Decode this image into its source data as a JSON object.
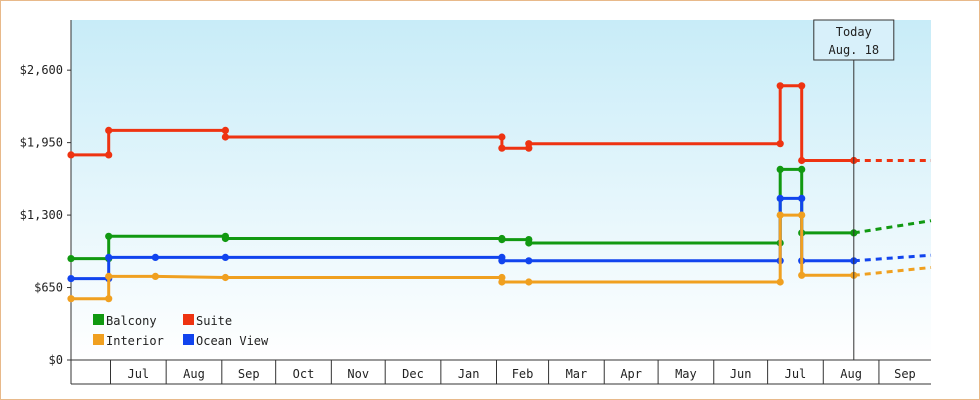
{
  "chart_data": {
    "type": "line",
    "step": true,
    "y_tick_labels": [
      "$0",
      "$650",
      "$1,300",
      "$1,950",
      "$2,600"
    ],
    "y_ticks": [
      0,
      650,
      1300,
      1950,
      2600
    ],
    "ylim": [
      0,
      3050
    ],
    "x_range": [
      "2023-06-09",
      "2024-09-30"
    ],
    "x_tick_labels": [
      "Jul",
      "Aug",
      "Sep",
      "Oct",
      "Nov",
      "Dec",
      "Jan",
      "Feb",
      "Mar",
      "Apr",
      "May",
      "Jun",
      "Jul",
      "Aug",
      "Sep"
    ],
    "month_starts": [
      "2023-07-01",
      "2023-08-01",
      "2023-09-01",
      "2023-10-01",
      "2023-11-01",
      "2023-12-01",
      "2024-01-01",
      "2024-02-01",
      "2024-03-01",
      "2024-04-01",
      "2024-05-01",
      "2024-06-01",
      "2024-07-01",
      "2024-08-01",
      "2024-09-01"
    ],
    "today": {
      "line1": "Today",
      "line2": "Aug. 18",
      "date": "2024-08-18"
    },
    "grid": false,
    "legend_position": "bottom-left",
    "series": [
      {
        "name": "Suite",
        "color": "#ee3311",
        "points": [
          [
            "2023-06-09",
            1840
          ],
          [
            "2023-06-30",
            1840
          ],
          [
            "2023-06-30",
            2060
          ],
          [
            "2023-09-03",
            2060
          ],
          [
            "2023-09-03",
            2000
          ],
          [
            "2024-02-04",
            2000
          ],
          [
            "2024-02-04",
            1900
          ],
          [
            "2024-02-19",
            1900
          ],
          [
            "2024-02-19",
            1940
          ],
          [
            "2024-07-08",
            1940
          ],
          [
            "2024-07-08",
            2460
          ],
          [
            "2024-07-20",
            2460
          ],
          [
            "2024-07-20",
            1790
          ],
          [
            "2024-08-18",
            1790
          ]
        ],
        "forecast": [
          [
            "2024-08-18",
            1790
          ],
          [
            "2024-09-30",
            1790
          ]
        ]
      },
      {
        "name": "Balcony",
        "color": "#119911",
        "points": [
          [
            "2023-06-09",
            910
          ],
          [
            "2023-06-30",
            910
          ],
          [
            "2023-06-30",
            1110
          ],
          [
            "2023-09-03",
            1110
          ],
          [
            "2023-09-03",
            1090
          ],
          [
            "2024-02-04",
            1090
          ],
          [
            "2024-02-04",
            1080
          ],
          [
            "2024-02-19",
            1080
          ],
          [
            "2024-02-19",
            1050
          ],
          [
            "2024-07-08",
            1050
          ],
          [
            "2024-07-08",
            1710
          ],
          [
            "2024-07-20",
            1710
          ],
          [
            "2024-07-20",
            1140
          ],
          [
            "2024-08-18",
            1140
          ]
        ],
        "forecast": [
          [
            "2024-08-18",
            1140
          ],
          [
            "2024-09-30",
            1250
          ]
        ]
      },
      {
        "name": "Ocean View",
        "color": "#1144ee",
        "points": [
          [
            "2023-06-09",
            730
          ],
          [
            "2023-06-30",
            730
          ],
          [
            "2023-06-30",
            920
          ],
          [
            "2023-07-26",
            920
          ],
          [
            "2023-09-03",
            920
          ],
          [
            "2024-02-04",
            920
          ],
          [
            "2024-02-04",
            890
          ],
          [
            "2024-02-19",
            890
          ],
          [
            "2024-07-08",
            890
          ],
          [
            "2024-07-08",
            1450
          ],
          [
            "2024-07-20",
            1450
          ],
          [
            "2024-07-20",
            890
          ],
          [
            "2024-08-18",
            890
          ]
        ],
        "forecast": [
          [
            "2024-08-18",
            890
          ],
          [
            "2024-09-30",
            940
          ]
        ]
      },
      {
        "name": "Interior",
        "color": "#f0a020",
        "points": [
          [
            "2023-06-09",
            550
          ],
          [
            "2023-06-30",
            550
          ],
          [
            "2023-06-30",
            750
          ],
          [
            "2023-07-26",
            750
          ],
          [
            "2023-09-03",
            740
          ],
          [
            "2024-02-04",
            740
          ],
          [
            "2024-02-04",
            700
          ],
          [
            "2024-02-19",
            700
          ],
          [
            "2024-07-08",
            700
          ],
          [
            "2024-07-08",
            1300
          ],
          [
            "2024-07-20",
            1300
          ],
          [
            "2024-07-20",
            760
          ],
          [
            "2024-08-18",
            760
          ]
        ],
        "forecast": [
          [
            "2024-08-18",
            760
          ],
          [
            "2024-09-30",
            830
          ]
        ]
      }
    ],
    "legend": [
      {
        "label": "Balcony",
        "color": "#119911"
      },
      {
        "label": "Suite",
        "color": "#ee3311"
      },
      {
        "label": "Interior",
        "color": "#f0a020"
      },
      {
        "label": "Ocean View",
        "color": "#1144ee"
      }
    ]
  }
}
